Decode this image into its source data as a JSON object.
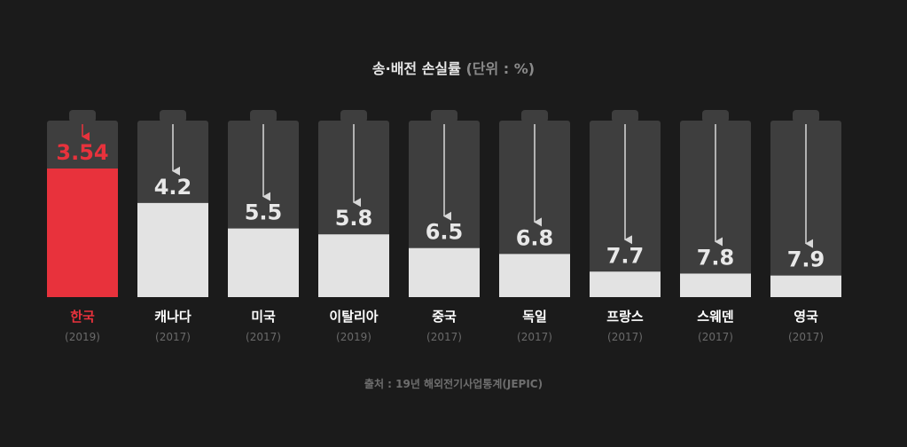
{
  "title": "송·배전 손실률",
  "unit": "(단위 : %)",
  "source": "출처 : 19년 해외전기사업통계(JEPIC)",
  "colors": {
    "highlight": "#e8323c",
    "bar": "#e3e3e3",
    "battery": "#3e3e3e",
    "label": "#ffffff",
    "year": "#6a6a6a"
  },
  "chart_data": {
    "type": "bar",
    "categories": [
      "한국",
      "캐나다",
      "미국",
      "이탈리아",
      "중국",
      "독일",
      "프랑스",
      "스웨덴",
      "영국"
    ],
    "years": [
      "(2019)",
      "(2017)",
      "(2017)",
      "(2019)",
      "(2017)",
      "(2017)",
      "(2017)",
      "(2017)",
      "(2017)"
    ],
    "values": [
      3.54,
      4.2,
      5.5,
      5.8,
      6.5,
      6.8,
      7.7,
      7.8,
      7.9
    ],
    "value_labels": [
      "3.54",
      "4.2",
      "5.5",
      "5.8",
      "6.5",
      "6.8",
      "7.7",
      "7.8",
      "7.9"
    ],
    "highlight": "한국",
    "ylabel": "",
    "xlabel": "",
    "grid": false
  }
}
